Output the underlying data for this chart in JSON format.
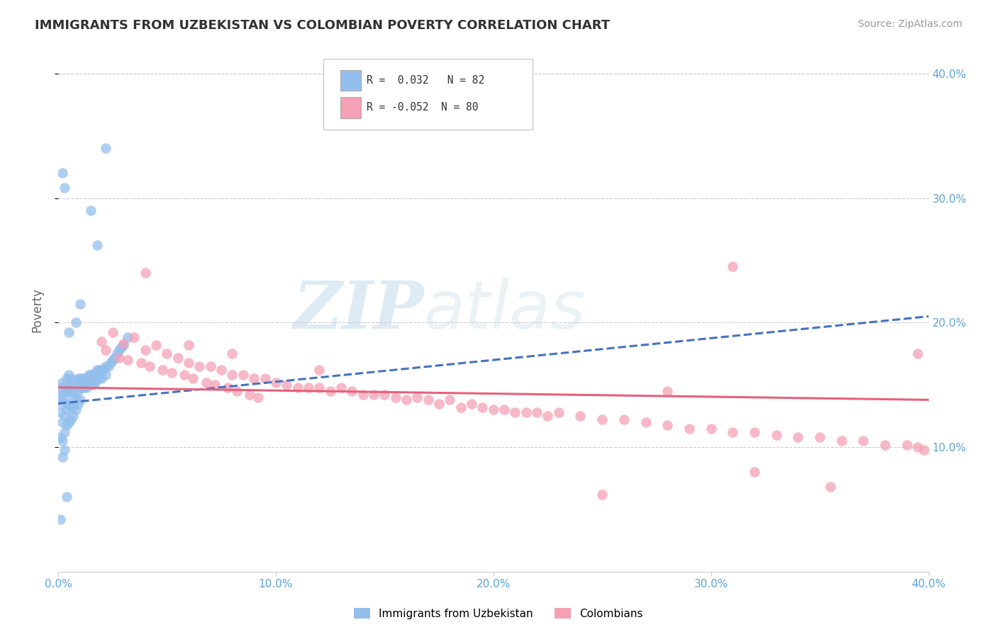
{
  "title": "IMMIGRANTS FROM UZBEKISTAN VS COLOMBIAN POVERTY CORRELATION CHART",
  "source": "Source: ZipAtlas.com",
  "ylabel": "Poverty",
  "xmin": 0.0,
  "xmax": 0.4,
  "ymin": 0.0,
  "ymax": 0.42,
  "yticks": [
    0.1,
    0.2,
    0.3,
    0.4
  ],
  "xticks": [
    0.0,
    0.1,
    0.2,
    0.3,
    0.4
  ],
  "xtick_labels": [
    "0.0%",
    "10.0%",
    "20.0%",
    "30.0%",
    "40.0%"
  ],
  "ytick_labels": [
    "10.0%",
    "20.0%",
    "30.0%",
    "40.0%"
  ],
  "legend_entry1": "R =  0.032   N = 82",
  "legend_entry2": "R = -0.052  N = 80",
  "blue_color": "#93BFED",
  "pink_color": "#F5A0B5",
  "blue_line_color": "#4472C4",
  "pink_line_color": "#E8607A",
  "axis_color": "#5BA3D9",
  "watermark_zip": "ZIP",
  "watermark_atlas": "atlas",
  "blue_scatter_x": [
    0.001,
    0.001,
    0.001,
    0.001,
    0.002,
    0.002,
    0.002,
    0.002,
    0.002,
    0.002,
    0.003,
    0.003,
    0.003,
    0.003,
    0.003,
    0.004,
    0.004,
    0.004,
    0.004,
    0.005,
    0.005,
    0.005,
    0.005,
    0.006,
    0.006,
    0.006,
    0.006,
    0.007,
    0.007,
    0.007,
    0.007,
    0.008,
    0.008,
    0.008,
    0.009,
    0.009,
    0.009,
    0.01,
    0.01,
    0.01,
    0.011,
    0.011,
    0.012,
    0.012,
    0.013,
    0.013,
    0.014,
    0.014,
    0.015,
    0.015,
    0.016,
    0.016,
    0.017,
    0.017,
    0.018,
    0.018,
    0.019,
    0.019,
    0.02,
    0.02,
    0.021,
    0.022,
    0.022,
    0.023,
    0.024,
    0.025,
    0.026,
    0.027,
    0.028,
    0.029,
    0.03,
    0.032,
    0.015,
    0.018,
    0.022,
    0.01,
    0.008,
    0.005,
    0.003,
    0.002,
    0.001,
    0.004
  ],
  "blue_scatter_y": [
    0.148,
    0.14,
    0.128,
    0.108,
    0.152,
    0.143,
    0.135,
    0.12,
    0.105,
    0.092,
    0.148,
    0.138,
    0.125,
    0.112,
    0.098,
    0.155,
    0.145,
    0.13,
    0.118,
    0.158,
    0.148,
    0.135,
    0.12,
    0.155,
    0.145,
    0.132,
    0.122,
    0.152,
    0.142,
    0.133,
    0.125,
    0.15,
    0.14,
    0.13,
    0.155,
    0.145,
    0.135,
    0.155,
    0.148,
    0.138,
    0.155,
    0.148,
    0.155,
    0.148,
    0.155,
    0.148,
    0.158,
    0.15,
    0.158,
    0.15,
    0.158,
    0.15,
    0.16,
    0.152,
    0.162,
    0.155,
    0.162,
    0.155,
    0.162,
    0.155,
    0.162,
    0.165,
    0.158,
    0.165,
    0.168,
    0.17,
    0.172,
    0.175,
    0.178,
    0.18,
    0.182,
    0.188,
    0.29,
    0.262,
    0.34,
    0.215,
    0.2,
    0.192,
    0.308,
    0.32,
    0.042,
    0.06
  ],
  "pink_scatter_x": [
    0.02,
    0.022,
    0.025,
    0.028,
    0.03,
    0.032,
    0.035,
    0.038,
    0.04,
    0.042,
    0.045,
    0.048,
    0.05,
    0.052,
    0.055,
    0.058,
    0.06,
    0.062,
    0.065,
    0.068,
    0.07,
    0.072,
    0.075,
    0.078,
    0.08,
    0.082,
    0.085,
    0.088,
    0.09,
    0.092,
    0.095,
    0.1,
    0.105,
    0.11,
    0.115,
    0.12,
    0.125,
    0.13,
    0.135,
    0.14,
    0.145,
    0.15,
    0.155,
    0.16,
    0.165,
    0.17,
    0.175,
    0.18,
    0.185,
    0.19,
    0.195,
    0.2,
    0.205,
    0.21,
    0.215,
    0.22,
    0.225,
    0.23,
    0.24,
    0.25,
    0.26,
    0.27,
    0.28,
    0.29,
    0.3,
    0.31,
    0.32,
    0.33,
    0.34,
    0.35,
    0.36,
    0.37,
    0.38,
    0.39,
    0.395,
    0.398,
    0.04,
    0.06,
    0.08,
    0.12
  ],
  "pink_scatter_y": [
    0.185,
    0.178,
    0.192,
    0.172,
    0.183,
    0.17,
    0.188,
    0.168,
    0.178,
    0.165,
    0.182,
    0.162,
    0.175,
    0.16,
    0.172,
    0.158,
    0.168,
    0.155,
    0.165,
    0.152,
    0.165,
    0.15,
    0.162,
    0.148,
    0.158,
    0.145,
    0.158,
    0.142,
    0.155,
    0.14,
    0.155,
    0.152,
    0.15,
    0.148,
    0.148,
    0.148,
    0.145,
    0.148,
    0.145,
    0.142,
    0.142,
    0.142,
    0.14,
    0.138,
    0.14,
    0.138,
    0.135,
    0.138,
    0.132,
    0.135,
    0.132,
    0.13,
    0.13,
    0.128,
    0.128,
    0.128,
    0.125,
    0.128,
    0.125,
    0.122,
    0.122,
    0.12,
    0.118,
    0.115,
    0.115,
    0.112,
    0.112,
    0.11,
    0.108,
    0.108,
    0.105,
    0.105,
    0.102,
    0.102,
    0.1,
    0.098,
    0.24,
    0.182,
    0.175,
    0.162
  ],
  "pink_outlier_x": [
    0.31,
    0.395,
    0.28,
    0.32,
    0.355,
    0.25
  ],
  "pink_outlier_y": [
    0.245,
    0.175,
    0.145,
    0.08,
    0.068,
    0.062
  ]
}
